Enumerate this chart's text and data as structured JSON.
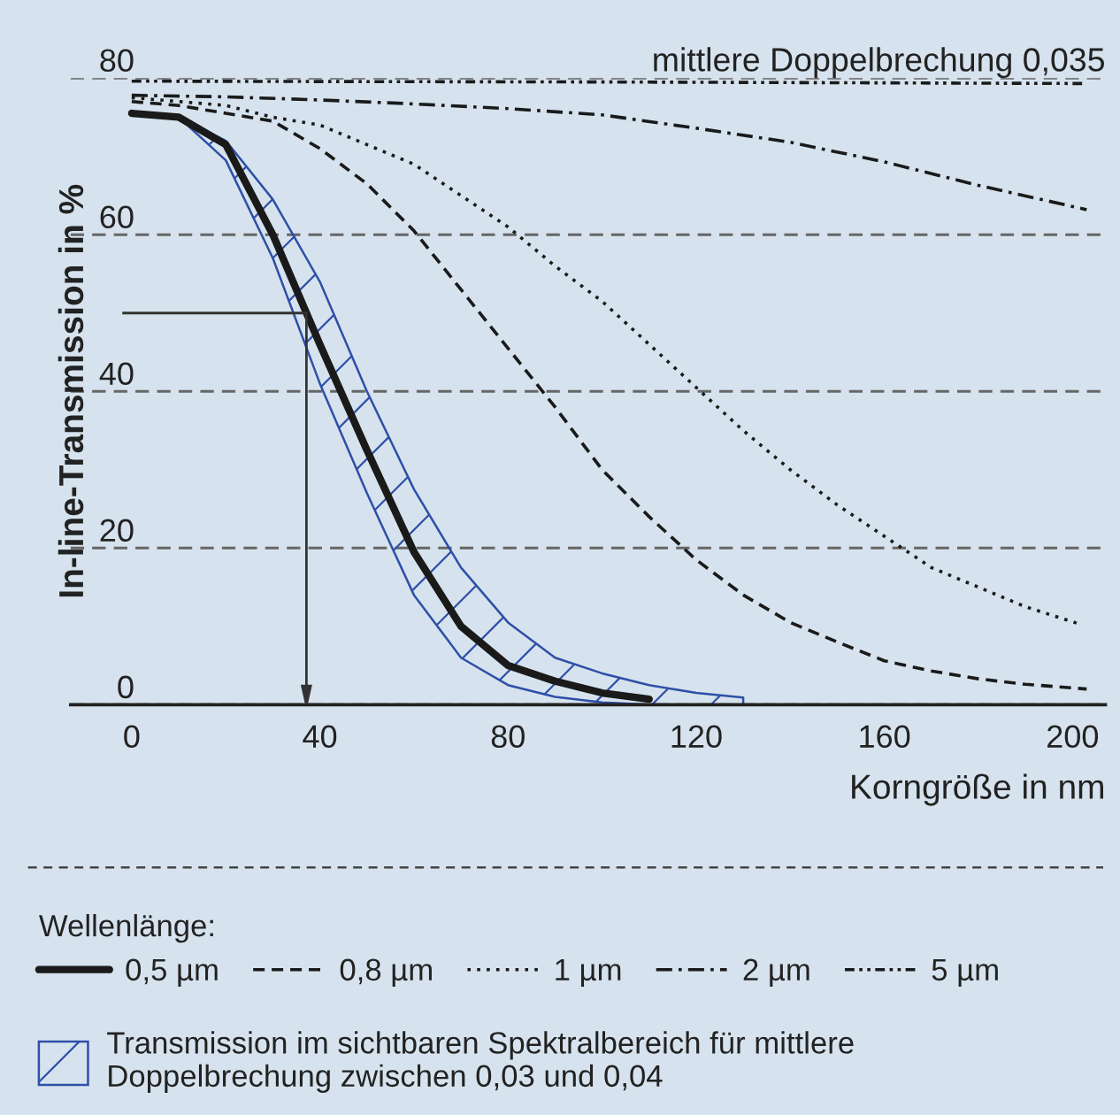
{
  "chart_data": {
    "type": "line",
    "xlabel": "Korngröße in nm",
    "ylabel": "In-line-Transmission in %",
    "legend_title": "Wellenlänge:",
    "annotations": [
      "mittlere Doppelbrechung 0,035",
      "Transmission im sichtbaren Spektralbereich für mittlere\nDoppelbrechung zwischen 0,03 und 0,04"
    ],
    "xlim": [
      -13,
      207
    ],
    "ylim": [
      0,
      80
    ],
    "xticks": [
      0,
      40,
      80,
      120,
      160,
      200
    ],
    "yticks": [
      0,
      20,
      40,
      60,
      80
    ],
    "grid": "y",
    "legend": "bottom",
    "series": [
      {
        "name": "0,5 µm",
        "color": "#1a1a1a",
        "line_style": "solid",
        "x": [
          0,
          10,
          20,
          30,
          40,
          50,
          60,
          70,
          80,
          90,
          100,
          110,
          120,
          130
        ],
        "values": [
          75.5,
          75,
          71.5,
          60,
          46,
          32.5,
          19.5,
          10,
          5,
          3,
          1.5,
          0.7,
          null,
          null
        ],
        "lower": [
          75.5,
          75,
          69.5,
          57,
          41,
          27,
          14,
          6,
          2.5,
          1,
          0.3,
          0,
          0,
          0
        ],
        "upper": [
          75.5,
          75,
          72,
          64.5,
          54,
          40,
          27.5,
          17.5,
          10.5,
          6,
          4,
          2.5,
          1.5,
          0.9
        ]
      },
      {
        "name": "0,8 µm",
        "color": "#1a1a1a",
        "line_style": "dashed",
        "x": [
          0,
          10,
          20,
          30,
          40,
          50,
          60,
          70,
          80,
          90,
          100,
          110,
          120,
          130,
          140,
          150,
          160,
          170,
          180,
          190,
          203
        ],
        "values": [
          77,
          76.5,
          75.5,
          74.5,
          71,
          66.5,
          60.5,
          53,
          45.5,
          38,
          30,
          24,
          18.5,
          14,
          10.5,
          8,
          5.6,
          4.3,
          3.3,
          2.6,
          2
        ]
      },
      {
        "name": "1 µm",
        "color": "#1a1a1a",
        "line_style": "dotted",
        "x": [
          0,
          10,
          20,
          30,
          40,
          50,
          60,
          70,
          80,
          90,
          100,
          110,
          120,
          130,
          140,
          150,
          160,
          170,
          180,
          190,
          202
        ],
        "values": [
          77.5,
          77,
          76.5,
          75,
          74,
          71.5,
          69,
          65,
          61,
          56,
          51.5,
          46,
          40.5,
          35,
          30,
          25.5,
          21.5,
          17.5,
          15,
          12.5,
          10.2
        ]
      },
      {
        "name": "2 µm",
        "color": "#1a1a1a",
        "line_style": "dashdot",
        "x": [
          0,
          20,
          40,
          60,
          80,
          100,
          120,
          140,
          160,
          180,
          203
        ],
        "values": [
          77.8,
          77.6,
          77.2,
          76.7,
          76.1,
          75.3,
          73.6,
          71.8,
          69.3,
          66.3,
          63.2
        ]
      },
      {
        "name": "5 µm",
        "color": "#1a1a1a",
        "line_style": "dashdotdot",
        "x": [
          0,
          100,
          203
        ],
        "values": [
          79.6,
          79.5,
          79.3
        ]
      }
    ]
  }
}
